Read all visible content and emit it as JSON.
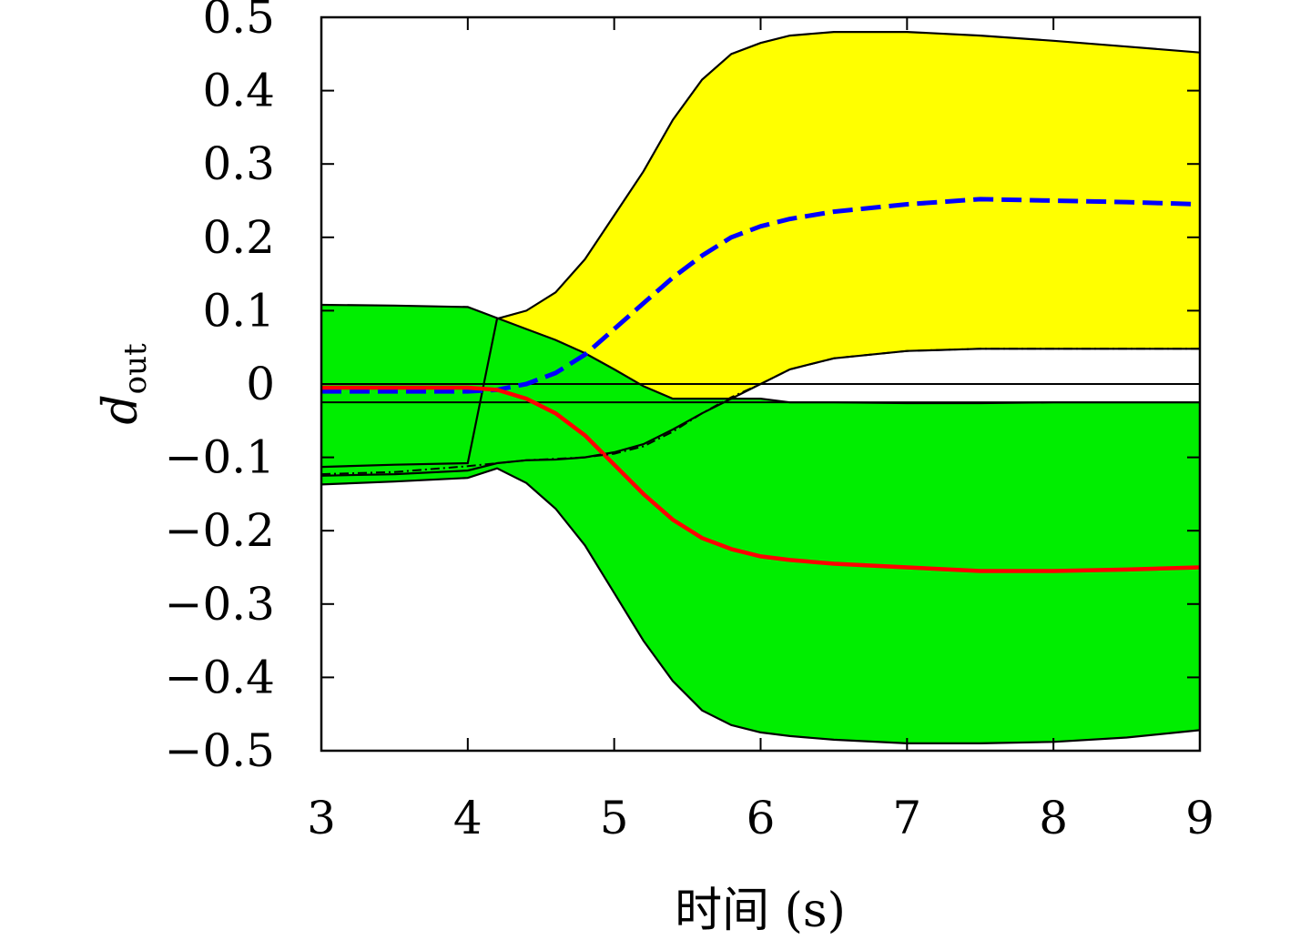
{
  "chart_data": {
    "type": "area",
    "xlabel": "时间 (s)",
    "ylabel": {
      "main": "d",
      "sub": "out"
    },
    "xlim": [
      3,
      9
    ],
    "ylim": [
      -0.5,
      0.5
    ],
    "xticks": [
      3,
      4,
      5,
      6,
      7,
      8,
      9
    ],
    "yticks": [
      0.5,
      0.4,
      0.3,
      0.2,
      0.1,
      0,
      -0.1,
      -0.2,
      -0.3,
      -0.4,
      -0.5
    ],
    "ytick_labels": [
      "0.5",
      "0.4",
      "0.3",
      "0.2",
      "0.1",
      "0",
      "−0.1",
      "−0.2",
      "−0.3",
      "−0.4",
      "−0.5"
    ],
    "grid": false,
    "colors": {
      "yellow_band": "#ffff00",
      "green_band": "#00ee00",
      "dashed_line": "#0000ff",
      "solid_line": "#ff0000",
      "dashdot_line": "#000000",
      "band_outline": "#000000"
    },
    "x": [
      3.0,
      3.5,
      4.0,
      4.2,
      4.4,
      4.6,
      4.8,
      5.0,
      5.2,
      5.4,
      5.6,
      5.8,
      6.0,
      6.2,
      6.5,
      7.0,
      7.5,
      8.0,
      8.5,
      9.0
    ],
    "yellow_band": {
      "upper": [
        -0.113,
        -0.11,
        -0.108,
        0.089,
        0.1,
        0.125,
        0.17,
        0.23,
        0.29,
        0.36,
        0.415,
        0.45,
        0.465,
        0.475,
        0.48,
        0.48,
        0.475,
        0.468,
        0.46,
        0.452
      ],
      "lower": [
        -0.125,
        -0.123,
        -0.118,
        -0.108,
        -0.104,
        -0.103,
        -0.1,
        -0.093,
        -0.082,
        -0.062,
        -0.04,
        -0.02,
        0.0,
        0.02,
        0.035,
        0.045,
        0.048,
        0.048,
        0.048,
        0.048
      ]
    },
    "green_band": {
      "upper": [
        0.108,
        0.107,
        0.105,
        0.09,
        0.075,
        0.06,
        0.042,
        0.02,
        -0.003,
        -0.02,
        -0.02,
        -0.02,
        -0.02,
        -0.025,
        -0.025,
        -0.026,
        -0.026,
        -0.025,
        -0.025,
        -0.025
      ],
      "lower": [
        -0.137,
        -0.133,
        -0.128,
        -0.115,
        -0.135,
        -0.17,
        -0.22,
        -0.285,
        -0.35,
        -0.405,
        -0.445,
        -0.465,
        -0.475,
        -0.48,
        -0.485,
        -0.49,
        -0.49,
        -0.488,
        -0.482,
        -0.472
      ]
    },
    "series": [
      {
        "style": "dashed",
        "values": [
          -0.01,
          -0.01,
          -0.01,
          -0.008,
          0.0,
          0.015,
          0.04,
          0.075,
          0.11,
          0.145,
          0.175,
          0.2,
          0.215,
          0.225,
          0.235,
          0.245,
          0.252,
          0.25,
          0.248,
          0.245
        ]
      },
      {
        "style": "solid",
        "values": [
          -0.005,
          -0.005,
          -0.005,
          -0.008,
          -0.02,
          -0.04,
          -0.07,
          -0.11,
          -0.15,
          -0.185,
          -0.21,
          -0.225,
          -0.235,
          -0.24,
          -0.245,
          -0.25,
          -0.255,
          -0.255,
          -0.253,
          -0.25
        ]
      },
      {
        "style": "dashdot",
        "values": [
          -0.123,
          -0.12,
          -0.112,
          -0.108,
          -0.104,
          -0.102,
          -0.1,
          -0.095,
          -0.085,
          -0.065,
          -0.04,
          -0.018,
          0.0,
          0.02,
          0.035,
          0.045,
          0.048,
          0.048,
          0.048,
          0.048
        ]
      }
    ],
    "reference_lines": [
      0.0,
      -0.025
    ]
  }
}
